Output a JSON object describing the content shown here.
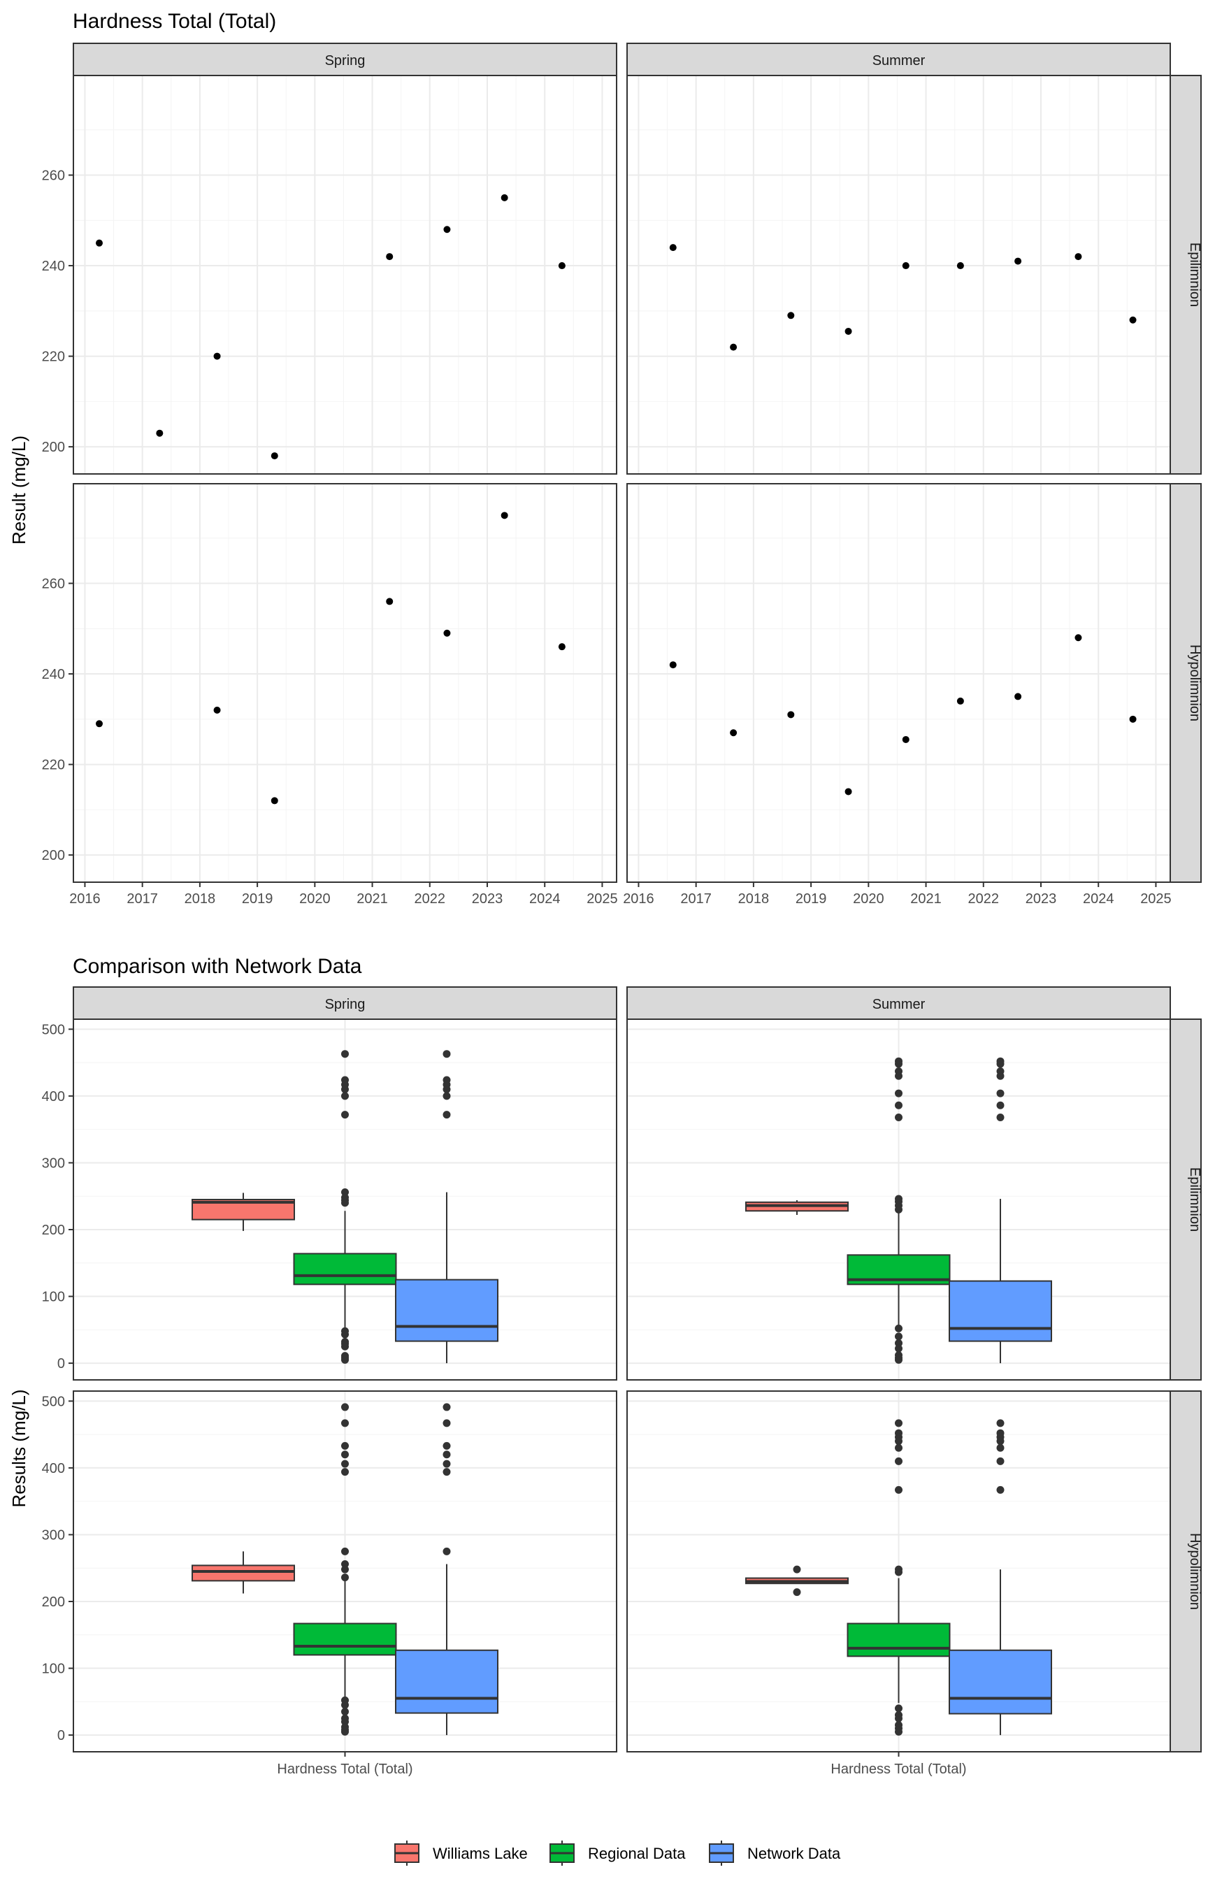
{
  "chart_data": [
    {
      "type": "scatter",
      "title": "Hardness Total (Total)",
      "ylabel": "Result (mg/L)",
      "xlabel": "",
      "x_ticks": [
        "2016",
        "2017",
        "2018",
        "2019",
        "2020",
        "2021",
        "2022",
        "2023",
        "2024",
        "2025"
      ],
      "xlim": [
        2015.8,
        2025.25
      ],
      "grid": true,
      "column_facets": [
        "Spring",
        "Summer"
      ],
      "row_facets": [
        "Epilimnion",
        "Hypolimnion"
      ],
      "panels": [
        {
          "row": "Epilimnion",
          "col": "Spring",
          "ylim": [
            194,
            282
          ],
          "y_ticks": [
            200,
            220,
            240,
            260
          ],
          "points": [
            {
              "x": 2016.25,
              "y": 245
            },
            {
              "x": 2017.3,
              "y": 203
            },
            {
              "x": 2018.3,
              "y": 220
            },
            {
              "x": 2019.3,
              "y": 198
            },
            {
              "x": 2021.3,
              "y": 242
            },
            {
              "x": 2022.3,
              "y": 248
            },
            {
              "x": 2023.3,
              "y": 255
            },
            {
              "x": 2024.3,
              "y": 240
            }
          ]
        },
        {
          "row": "Epilimnion",
          "col": "Summer",
          "ylim": [
            194,
            282
          ],
          "y_ticks": [
            200,
            220,
            240,
            260
          ],
          "points": [
            {
              "x": 2016.6,
              "y": 244
            },
            {
              "x": 2017.65,
              "y": 222
            },
            {
              "x": 2018.65,
              "y": 229
            },
            {
              "x": 2019.65,
              "y": 225.5
            },
            {
              "x": 2020.65,
              "y": 240
            },
            {
              "x": 2021.6,
              "y": 240
            },
            {
              "x": 2022.6,
              "y": 241
            },
            {
              "x": 2023.65,
              "y": 242
            },
            {
              "x": 2024.6,
              "y": 228
            }
          ]
        },
        {
          "row": "Hypolimnion",
          "col": "Spring",
          "ylim": [
            194,
            282
          ],
          "y_ticks": [
            200,
            220,
            240,
            260
          ],
          "points": [
            {
              "x": 2016.25,
              "y": 229
            },
            {
              "x": 2018.3,
              "y": 232
            },
            {
              "x": 2019.3,
              "y": 212
            },
            {
              "x": 2021.3,
              "y": 256
            },
            {
              "x": 2022.3,
              "y": 249
            },
            {
              "x": 2023.3,
              "y": 275
            },
            {
              "x": 2024.3,
              "y": 246
            }
          ]
        },
        {
          "row": "Hypolimnion",
          "col": "Summer",
          "ylim": [
            194,
            282
          ],
          "y_ticks": [
            200,
            220,
            240,
            260
          ],
          "points": [
            {
              "x": 2016.6,
              "y": 242
            },
            {
              "x": 2017.65,
              "y": 227
            },
            {
              "x": 2018.65,
              "y": 231
            },
            {
              "x": 2019.65,
              "y": 214
            },
            {
              "x": 2020.65,
              "y": 225.5
            },
            {
              "x": 2021.6,
              "y": 234
            },
            {
              "x": 2022.6,
              "y": 235
            },
            {
              "x": 2023.65,
              "y": 248
            },
            {
              "x": 2024.6,
              "y": 230
            }
          ]
        }
      ]
    },
    {
      "type": "box",
      "title": "Comparison with Network Data",
      "ylabel": "Results (mg/L)",
      "xlabel": "",
      "category": "Hardness Total (Total)",
      "ylim": [
        -25,
        515
      ],
      "y_ticks": [
        0,
        100,
        200,
        300,
        400,
        500
      ],
      "grid": true,
      "column_facets": [
        "Spring",
        "Summer"
      ],
      "row_facets": [
        "Epilimnion",
        "Hypolimnion"
      ],
      "legend": {
        "position": "bottom",
        "entries": [
          {
            "name": "Williams Lake",
            "color": "#F8766D"
          },
          {
            "name": "Regional Data",
            "color": "#00BA38"
          },
          {
            "name": "Network Data",
            "color": "#619CFF"
          }
        ]
      },
      "panels": [
        {
          "row": "Epilimnion",
          "col": "Spring",
          "boxes": [
            {
              "series": "Williams Lake",
              "q1": 215,
              "median": 241,
              "q3": 245,
              "lower": 198,
              "upper": 255,
              "outliers": []
            },
            {
              "series": "Regional Data",
              "q1": 118,
              "median": 131,
              "q3": 164,
              "lower": 50,
              "upper": 228,
              "outliers": [
                463,
                424,
                417,
                410,
                400,
                372,
                256,
                248,
                244,
                240,
                48,
                43,
                32,
                29,
                25,
                11,
                8,
                5
              ]
            },
            {
              "series": "Network Data",
              "q1": 33,
              "median": 55,
              "q3": 125,
              "lower": 0,
              "upper": 256,
              "outliers": [
                463,
                424,
                417,
                410,
                400,
                372
              ]
            }
          ]
        },
        {
          "row": "Epilimnion",
          "col": "Summer",
          "boxes": [
            {
              "series": "Williams Lake",
              "q1": 228,
              "median": 236,
              "q3": 241,
              "lower": 222,
              "upper": 244,
              "outliers": []
            },
            {
              "series": "Regional Data",
              "q1": 118,
              "median": 125,
              "q3": 162,
              "lower": 52,
              "upper": 230,
              "outliers": [
                452,
                448,
                437,
                430,
                404,
                386,
                368,
                246,
                242,
                236,
                230,
                52,
                40,
                30,
                22,
                12,
                8,
                5
              ]
            },
            {
              "series": "Network Data",
              "q1": 33,
              "median": 52,
              "q3": 123,
              "lower": 0,
              "upper": 246,
              "outliers": [
                452,
                448,
                437,
                430,
                404,
                386,
                368
              ]
            }
          ]
        },
        {
          "row": "Hypolimnion",
          "col": "Spring",
          "boxes": [
            {
              "series": "Williams Lake",
              "q1": 231,
              "median": 245,
              "q3": 254,
              "lower": 212,
              "upper": 275,
              "outliers": []
            },
            {
              "series": "Regional Data",
              "q1": 120,
              "median": 133,
              "q3": 167,
              "lower": 55,
              "upper": 236,
              "outliers": [
                491,
                467,
                433,
                420,
                406,
                394,
                275,
                256,
                248,
                236,
                52,
                45,
                35,
                25,
                20,
                12,
                8,
                5
              ]
            },
            {
              "series": "Network Data",
              "q1": 33,
              "median": 55,
              "q3": 127,
              "lower": 0,
              "upper": 256,
              "outliers": [
                491,
                467,
                433,
                420,
                406,
                394,
                275
              ]
            }
          ]
        },
        {
          "row": "Hypolimnion",
          "col": "Summer",
          "boxes": [
            {
              "series": "Williams Lake",
              "q1": 227,
              "median": 230,
              "q3": 235,
              "lower": 227,
              "upper": 235,
              "outliers": [
                248,
                214
              ]
            },
            {
              "series": "Regional Data",
              "q1": 118,
              "median": 130,
              "q3": 167,
              "lower": 48,
              "upper": 235,
              "outliers": [
                467,
                452,
                446,
                440,
                430,
                410,
                367,
                248,
                244,
                40,
                30,
                25,
                15,
                10,
                5
              ]
            },
            {
              "series": "Network Data",
              "q1": 32,
              "median": 55,
              "q3": 127,
              "lower": 0,
              "upper": 248,
              "outliers": [
                467,
                452,
                446,
                440,
                430,
                410,
                367
              ]
            }
          ]
        }
      ]
    }
  ]
}
